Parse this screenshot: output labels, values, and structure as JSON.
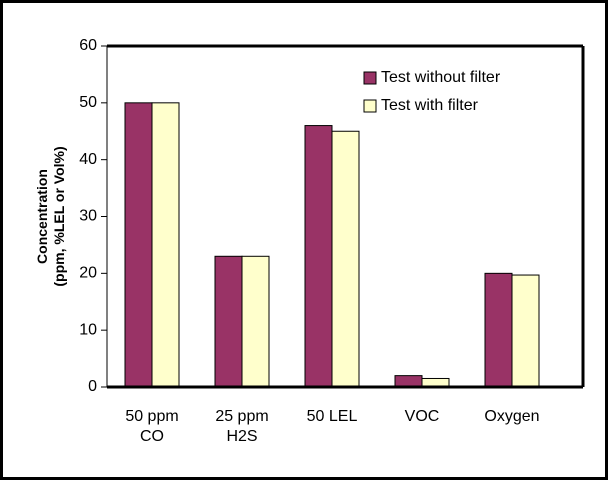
{
  "chart_data": {
    "type": "bar",
    "y_label": [
      "Concentration",
      "(ppm, %LEL or Vol%)"
    ],
    "categories": [
      "50 ppm CO",
      "25 ppm H2S",
      "50 LEL",
      "VOC",
      "Oxygen"
    ],
    "series": [
      {
        "name": "Test without filter",
        "color": "#993366",
        "values": [
          50,
          23,
          46,
          2,
          20
        ]
      },
      {
        "name": "Test with filter",
        "color": "#ffffcc",
        "values": [
          50,
          23,
          45,
          1.5,
          19.7
        ]
      }
    ],
    "ylim": [
      0,
      60
    ],
    "yticks": [
      0,
      10,
      20,
      30,
      40,
      50,
      60
    ],
    "legend": "upper right"
  }
}
